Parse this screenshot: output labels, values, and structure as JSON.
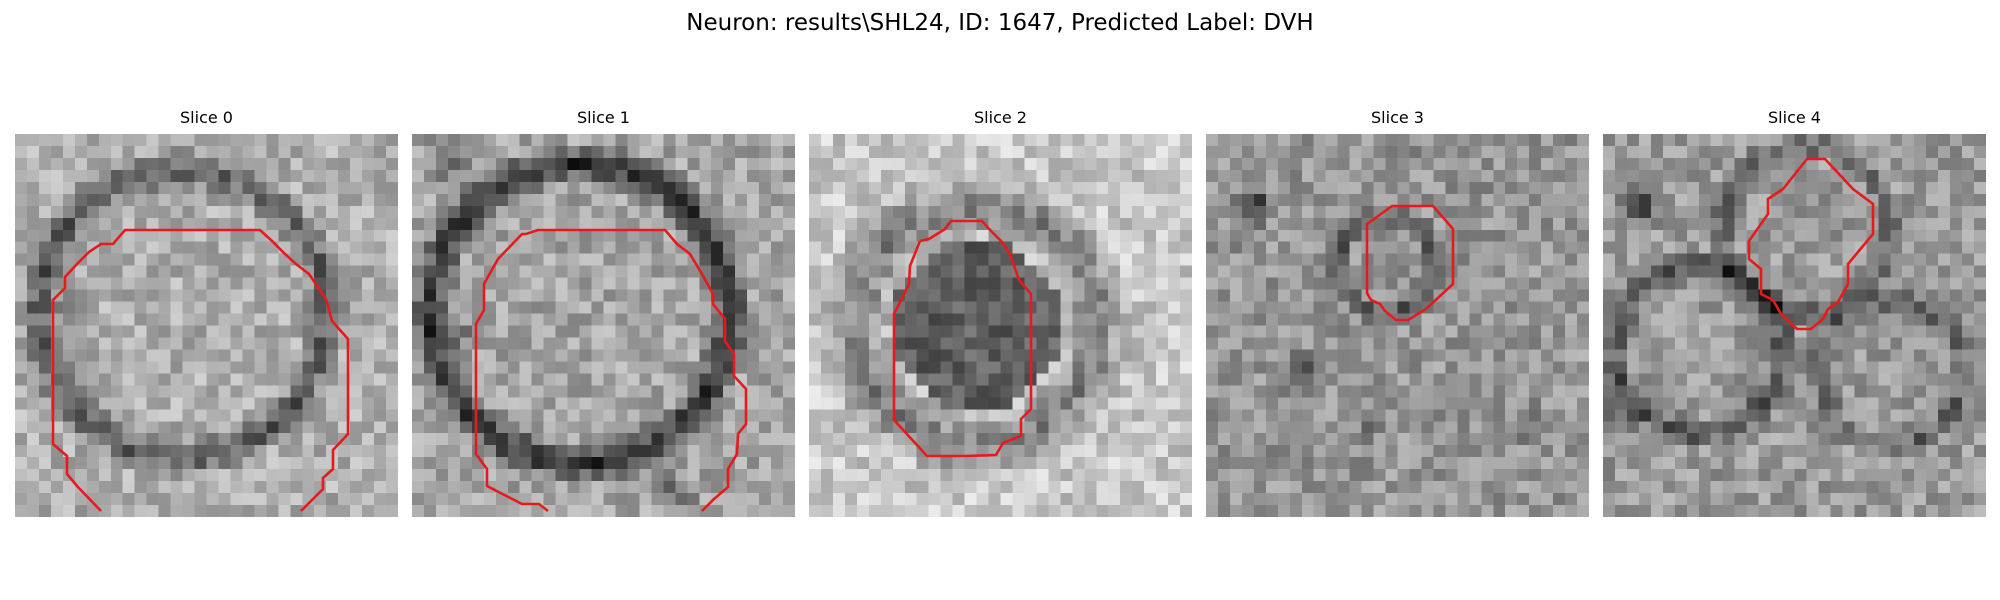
{
  "figure": {
    "title": "Neuron: results\\SHL24, ID: 1647, Predicted Label: DVH",
    "contour_color": "#e8191c",
    "colormap": "gray",
    "panels": [
      {
        "title": "Slice 0"
      },
      {
        "title": "Slice 1"
      },
      {
        "title": "Slice 2"
      },
      {
        "title": "Slice 3"
      },
      {
        "title": "Slice 4"
      }
    ]
  }
}
